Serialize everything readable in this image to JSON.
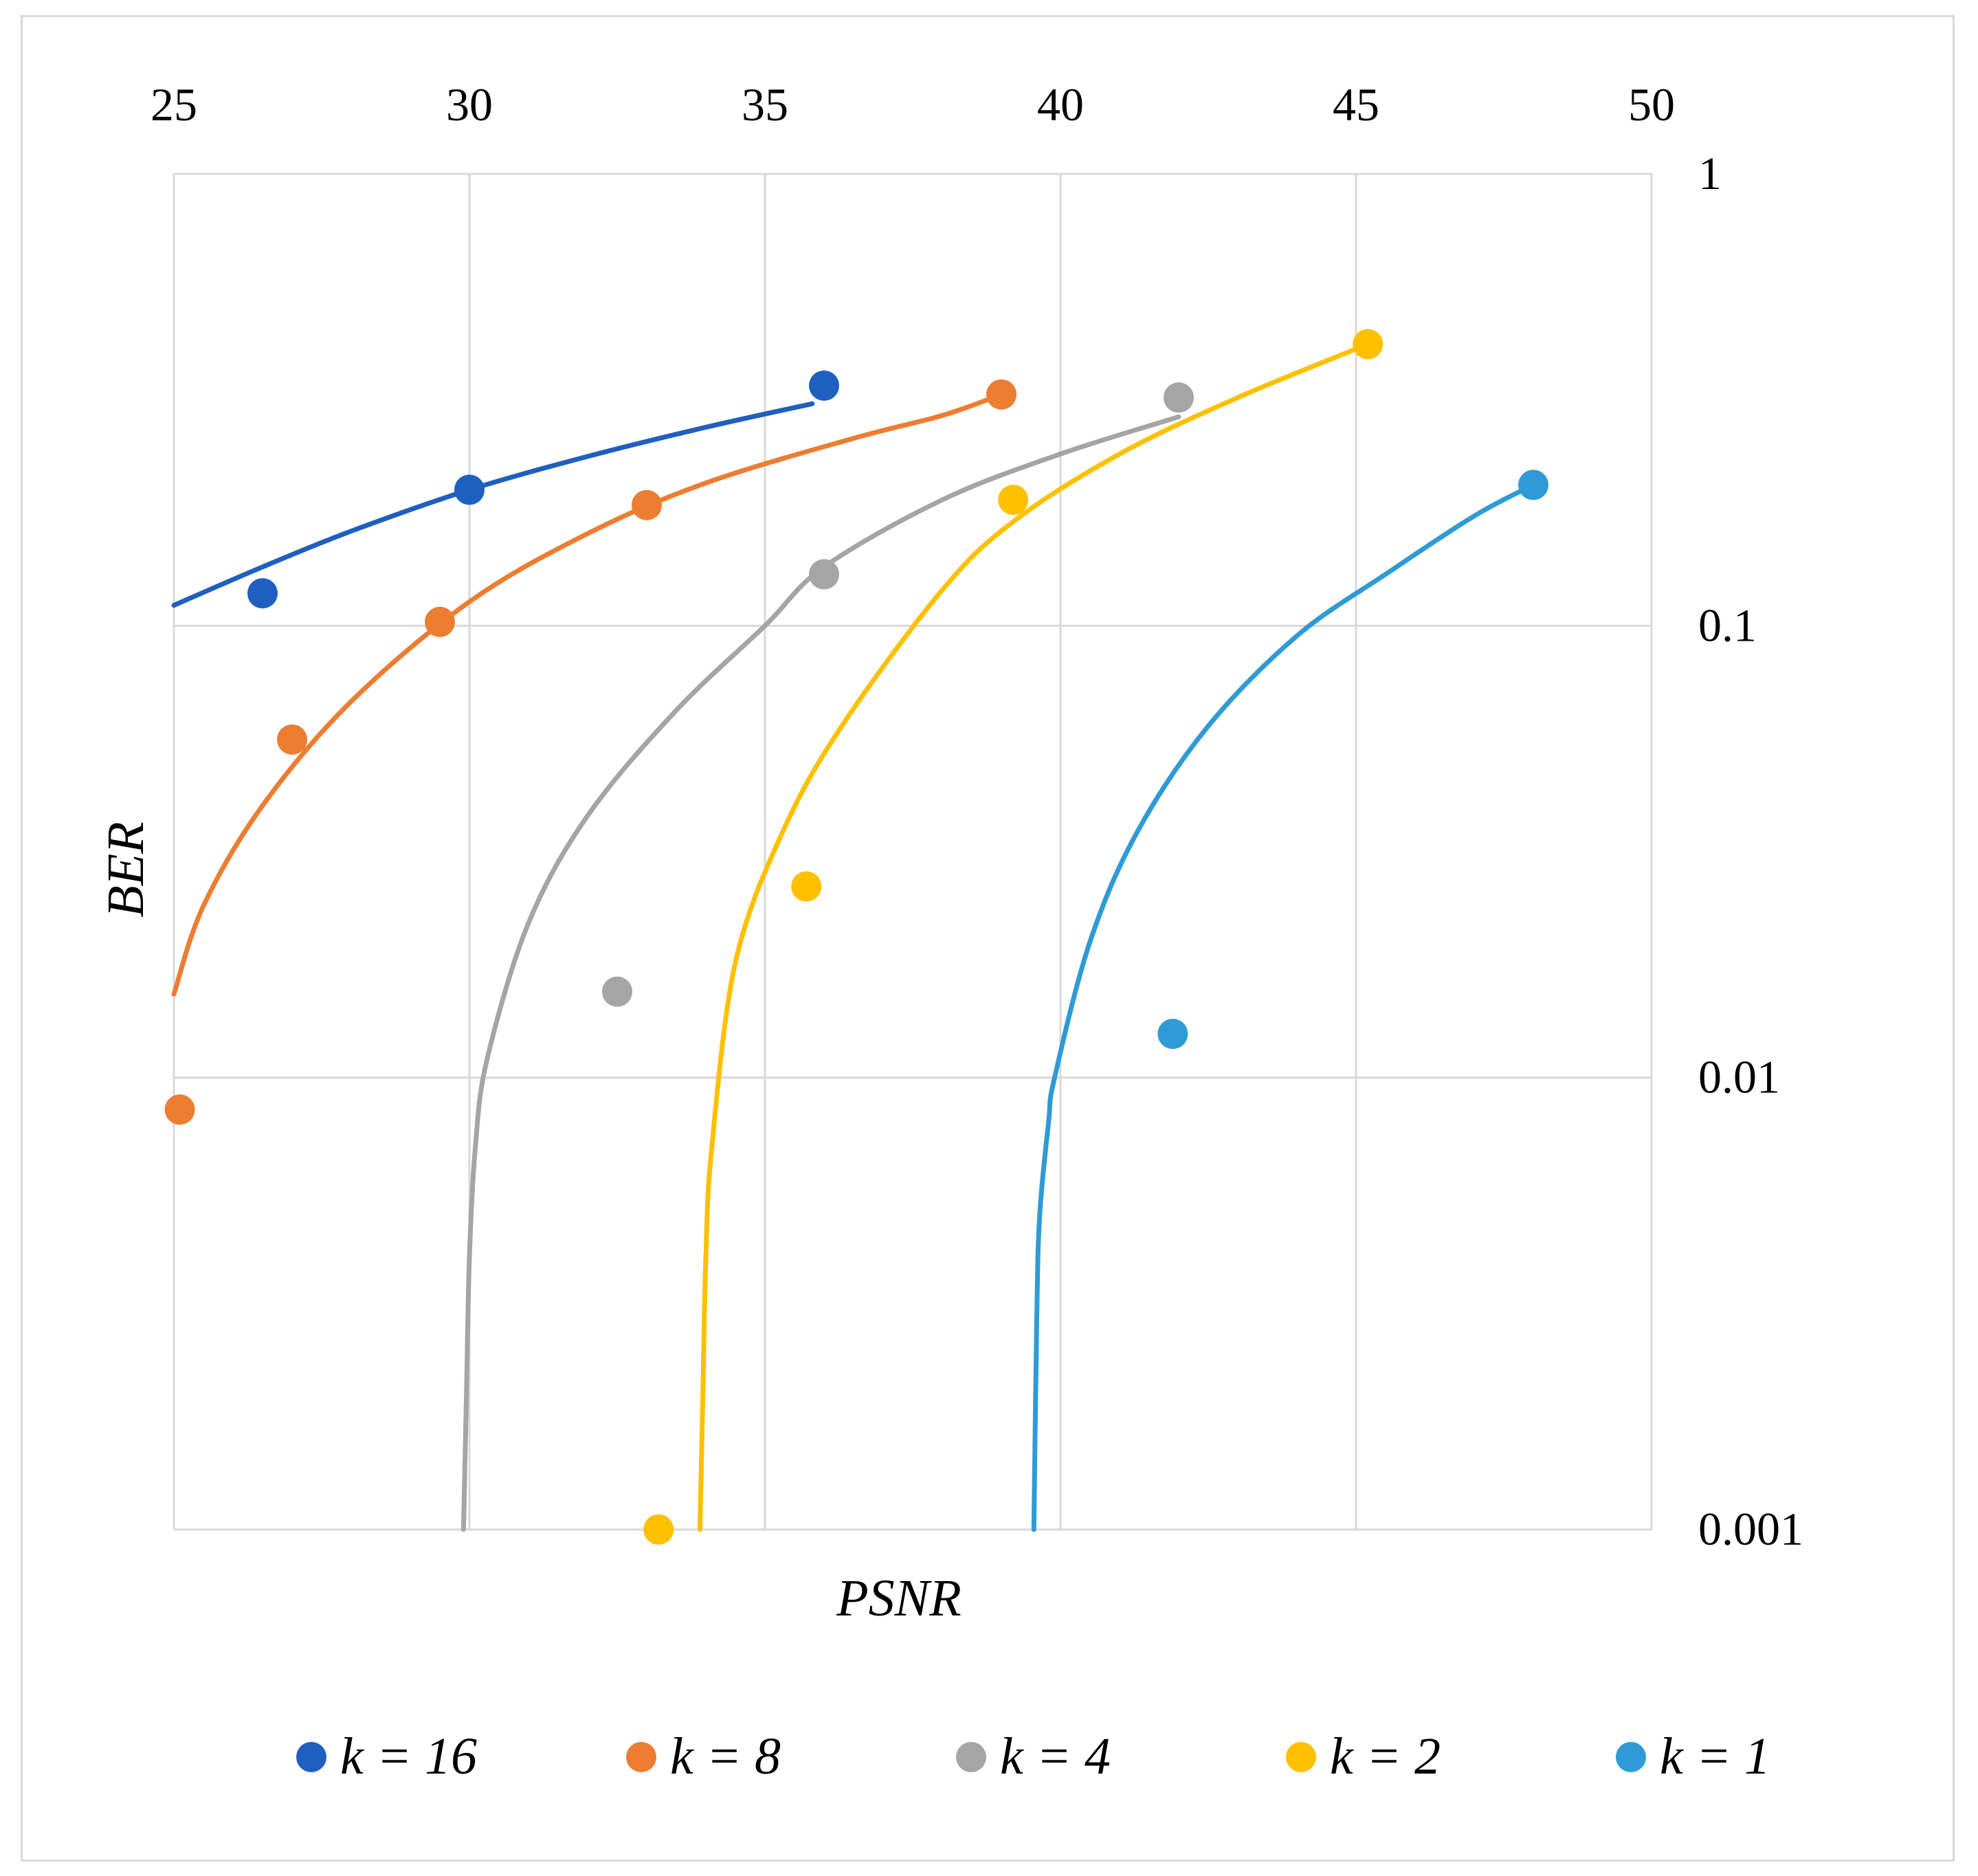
{
  "chart_data": {
    "type": "scatter",
    "title": "",
    "xlabel": "PSNR",
    "ylabel": "BER",
    "xlim": [
      25,
      50
    ],
    "ylim": [
      0.001,
      1
    ],
    "x_scale": "linear",
    "y_scale": "log",
    "x_axis_position": "top",
    "y_axis_position": "right",
    "grid": true,
    "legend_position": "bottom",
    "x_ticks": [
      "25",
      "30",
      "35",
      "40",
      "45",
      "50"
    ],
    "y_ticks": [
      "1",
      "0.1",
      "0.01",
      "0.001"
    ],
    "trendline": "logarithmic",
    "series": [
      {
        "name": "k = 16",
        "color": "#1f5fbf",
        "points": [
          [
            26.5,
            0.118
          ],
          [
            30.0,
            0.2
          ],
          [
            36.0,
            0.34
          ]
        ],
        "trend": [
          [
            25.0,
            0.111
          ],
          [
            26.5,
            0.135
          ],
          [
            28.0,
            0.162
          ],
          [
            30.0,
            0.2
          ],
          [
            32.0,
            0.237
          ],
          [
            34.0,
            0.275
          ],
          [
            35.8,
            0.31
          ]
        ]
      },
      {
        "name": "k = 8",
        "color": "#ed7d31",
        "points": [
          [
            25.1,
            0.0085
          ],
          [
            27.0,
            0.056
          ],
          [
            29.5,
            0.102
          ],
          [
            33.0,
            0.185
          ],
          [
            39.0,
            0.325
          ]
        ],
        "trend": [
          [
            25.0,
            0.0153
          ],
          [
            25.5,
            0.024
          ],
          [
            26.5,
            0.04
          ],
          [
            28.0,
            0.068
          ],
          [
            30.0,
            0.113
          ],
          [
            32.0,
            0.16
          ],
          [
            34.0,
            0.207
          ],
          [
            36.5,
            0.26
          ],
          [
            38.0,
            0.292
          ],
          [
            39.0,
            0.325
          ]
        ]
      },
      {
        "name": "k = 4",
        "color": "#a5a5a5",
        "points": [
          [
            32.5,
            0.0155
          ],
          [
            36.0,
            0.13
          ],
          [
            42.0,
            0.32
          ]
        ],
        "trend": [
          [
            29.9,
            0.001
          ],
          [
            29.95,
            0.002
          ],
          [
            30.0,
            0.004
          ],
          [
            30.1,
            0.007
          ],
          [
            30.3,
            0.011
          ],
          [
            31.0,
            0.022
          ],
          [
            32.0,
            0.038
          ],
          [
            33.5,
            0.065
          ],
          [
            35.0,
            0.1
          ],
          [
            36.0,
            0.135
          ],
          [
            38.0,
            0.19
          ],
          [
            40.0,
            0.24
          ],
          [
            42.0,
            0.29
          ]
        ]
      },
      {
        "name": "k = 2",
        "color": "#ffc000",
        "points": [
          [
            33.2,
            0.001
          ],
          [
            35.7,
            0.0265
          ],
          [
            39.2,
            0.19
          ],
          [
            45.2,
            0.42
          ]
        ],
        "trend": [
          [
            33.9,
            0.001
          ],
          [
            33.95,
            0.002
          ],
          [
            34.0,
            0.004
          ],
          [
            34.1,
            0.007
          ],
          [
            34.5,
            0.018
          ],
          [
            35.3,
            0.035
          ],
          [
            36.3,
            0.06
          ],
          [
            38.0,
            0.12
          ],
          [
            39.2,
            0.17
          ],
          [
            41.0,
            0.24
          ],
          [
            43.0,
            0.32
          ],
          [
            45.2,
            0.42
          ]
        ]
      },
      {
        "name": "k = 1",
        "color": "#2e9bd6",
        "points": [
          [
            41.9,
            0.0125
          ],
          [
            48.0,
            0.205
          ]
        ],
        "trend": [
          [
            39.55,
            0.001
          ],
          [
            39.6,
            0.003
          ],
          [
            39.65,
            0.005
          ],
          [
            39.8,
            0.008
          ],
          [
            39.9,
            0.01
          ],
          [
            40.5,
            0.02
          ],
          [
            41.3,
            0.035
          ],
          [
            42.5,
            0.06
          ],
          [
            44.0,
            0.095
          ],
          [
            45.5,
            0.13
          ],
          [
            47.0,
            0.175
          ],
          [
            48.0,
            0.205
          ]
        ]
      }
    ]
  }
}
